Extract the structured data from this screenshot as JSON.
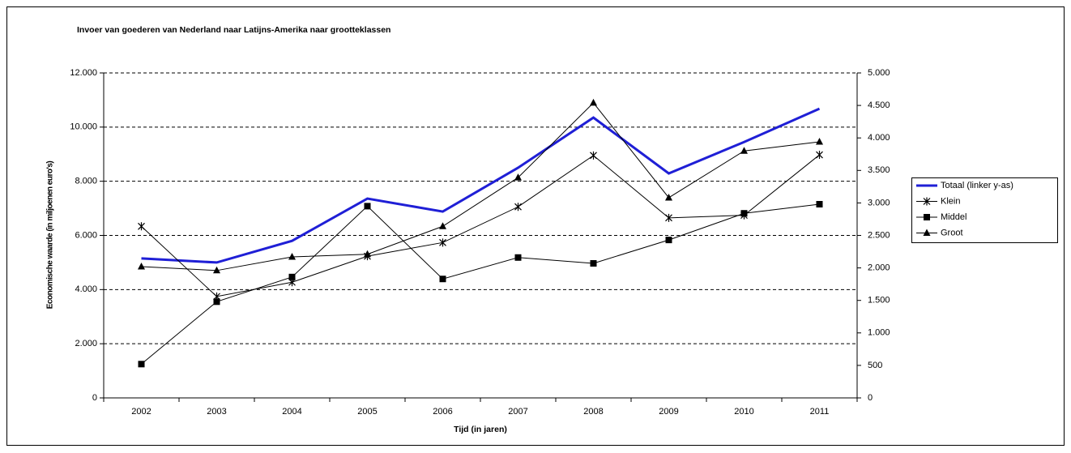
{
  "chart_data": {
    "type": "line",
    "title": "Invoer van goederen van Nederland naar Latijns-Amerika naar grootteklassen",
    "xlabel": "Tijd (in jaren)",
    "ylabel": "Economische waarde (in miljoenen euro's)",
    "categories": [
      "2002",
      "2003",
      "2004",
      "2005",
      "2006",
      "2007",
      "2008",
      "2009",
      "2010",
      "2011"
    ],
    "ylim": [
      0,
      12000
    ],
    "yticks": [
      0,
      {
        "value": 2000,
        "label": "2.000"
      },
      {
        "value": 4000,
        "label": "4.000"
      },
      {
        "value": 6000,
        "label": "6.000"
      },
      {
        "value": 8000,
        "label": "8.000"
      },
      {
        "value": 10000,
        "label": "10.000"
      },
      {
        "value": 12000,
        "label": "12.000"
      }
    ],
    "y2lim": [
      0,
      5000
    ],
    "y2ticks": [
      0,
      500,
      {
        "value": 1000,
        "label": "1.000"
      },
      {
        "value": 1500,
        "label": "1.500"
      },
      {
        "value": 2000,
        "label": "2.000"
      },
      {
        "value": 2500,
        "label": "2.500"
      },
      {
        "value": 3000,
        "label": "3.000"
      },
      {
        "value": 3500,
        "label": "3.500"
      },
      {
        "value": 4000,
        "label": "4.000"
      },
      {
        "value": 4500,
        "label": "4.500"
      },
      {
        "value": 5000,
        "label": "5.000"
      }
    ],
    "grid": true,
    "legend": "right",
    "series": [
      {
        "name": "Totaal (linker y-as)",
        "color": "#1f1fd6",
        "marker": "none",
        "values": [
          5150,
          5000,
          5800,
          7360,
          6880,
          8500,
          10350,
          8290,
          9450,
          10680
        ]
      },
      {
        "name": "Klein",
        "color": "#000000",
        "marker": "star",
        "axis": "y2",
        "values": [
          2640,
          1560,
          1780,
          2180,
          2390,
          2940,
          3730,
          2770,
          2810,
          3740
        ]
      },
      {
        "name": "Middel",
        "color": "#000000",
        "marker": "square",
        "axis": "y2",
        "values": [
          520,
          1480,
          1860,
          2950,
          1830,
          2160,
          2070,
          2430,
          2840,
          2980
        ]
      },
      {
        "name": "Groot",
        "color": "#000000",
        "marker": "triangle",
        "axis": "y2",
        "values": [
          2020,
          1960,
          2170,
          2210,
          2640,
          3390,
          4540,
          3080,
          3800,
          3940
        ]
      }
    ]
  }
}
